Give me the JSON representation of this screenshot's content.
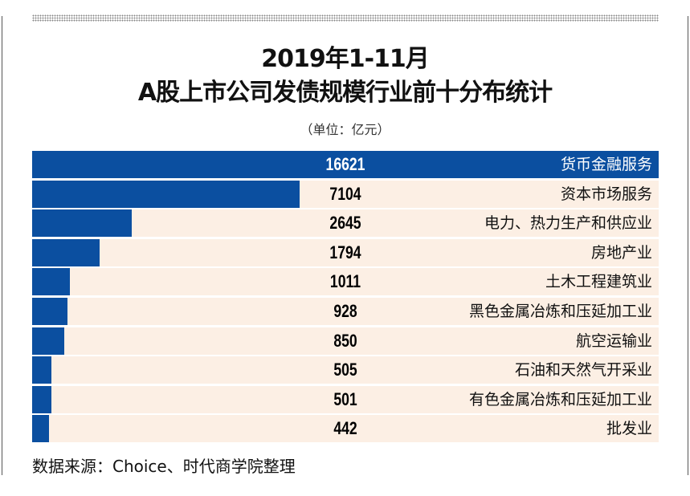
{
  "title_line1": "2019年1-11月",
  "title_line2": "A股上市公司发债规模行业前十分布统计",
  "unit": "（单位：亿元）",
  "source": "数据来源：Choice、时代商学院整理",
  "colors": {
    "bar": "#0b4fa0",
    "row_background": "#fcefe4"
  },
  "chart_data": {
    "type": "bar",
    "orientation": "horizontal",
    "title": "2019年1-11月 A股上市公司发债规模行业前十分布统计",
    "unit": "亿元",
    "categories": [
      "货币金融服务",
      "资本市场服务",
      "电力、热力生产和供应业",
      "房地产业",
      "土木工程建筑业",
      "黑色金属冶炼和压延加工业",
      "航空运输业",
      "石油和天然气开采业",
      "有色金属冶炼和压延加工业",
      "批发业"
    ],
    "values": [
      16621,
      7104,
      2645,
      1794,
      1011,
      928,
      850,
      505,
      501,
      442
    ],
    "value_labels": [
      "16621",
      "7104",
      "2645",
      "1794",
      "1011",
      "928",
      "850",
      "505",
      "501",
      "442"
    ],
    "xlim": [
      0,
      16621
    ],
    "grid": false,
    "legend": "none"
  }
}
